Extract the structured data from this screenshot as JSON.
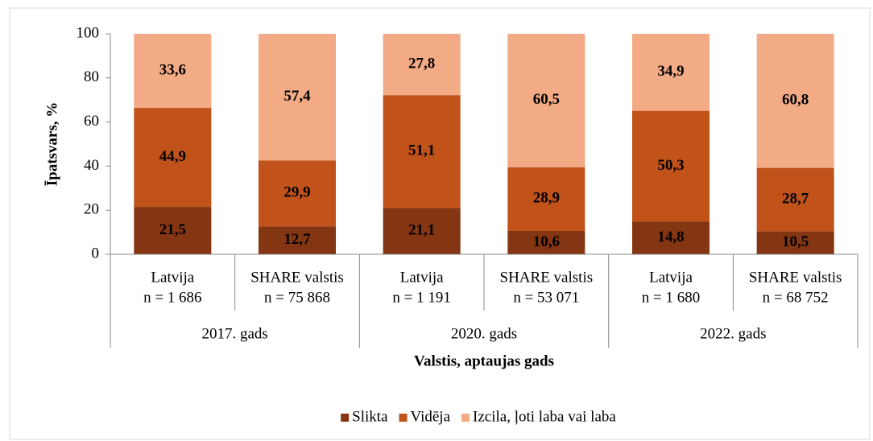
{
  "chart_data": {
    "type": "stacked_bar",
    "y_label": "Īpatsvars, %",
    "x_label": "Valstis, aptaujas gads",
    "categories": [
      [
        "Latvija",
        "n = 1 686"
      ],
      [
        "SHARE valstis",
        "n = 75 868"
      ],
      [
        "Latvija",
        "n = 1 191"
      ],
      [
        "SHARE valstis",
        "n = 53 071"
      ],
      [
        "Latvija",
        "n = 1 680"
      ],
      [
        "SHARE valstis",
        "n = 68 752"
      ]
    ],
    "groups": [
      "2017. gads",
      "2020. gads",
      "2022. gads"
    ],
    "series": [
      {
        "name": "Slikta",
        "color": "#843511",
        "values": [
          21.5,
          12.7,
          21.1,
          10.6,
          14.8,
          10.5
        ],
        "value_labels": [
          "21,5",
          "12,7",
          "21,1",
          "10,6",
          "14,8",
          "10,5"
        ]
      },
      {
        "name": "Vidēja",
        "color": "#c0521a",
        "values": [
          44.9,
          29.9,
          51.1,
          28.9,
          50.3,
          28.7
        ],
        "value_labels": [
          "44,9",
          "29,9",
          "51,1",
          "28,9",
          "50,3",
          "28,7"
        ]
      },
      {
        "name": "Izcila, ļoti laba vai laba",
        "color": "#f2ab84",
        "values": [
          33.6,
          57.4,
          27.8,
          60.5,
          34.9,
          60.8
        ],
        "value_labels": [
          "33,6",
          "57,4",
          "27,8",
          "60,5",
          "34,9",
          "60,8"
        ]
      }
    ],
    "ylim": [
      0,
      100
    ],
    "yticks": [
      0,
      20,
      40,
      60,
      80,
      100
    ],
    "legend": "bottom"
  }
}
